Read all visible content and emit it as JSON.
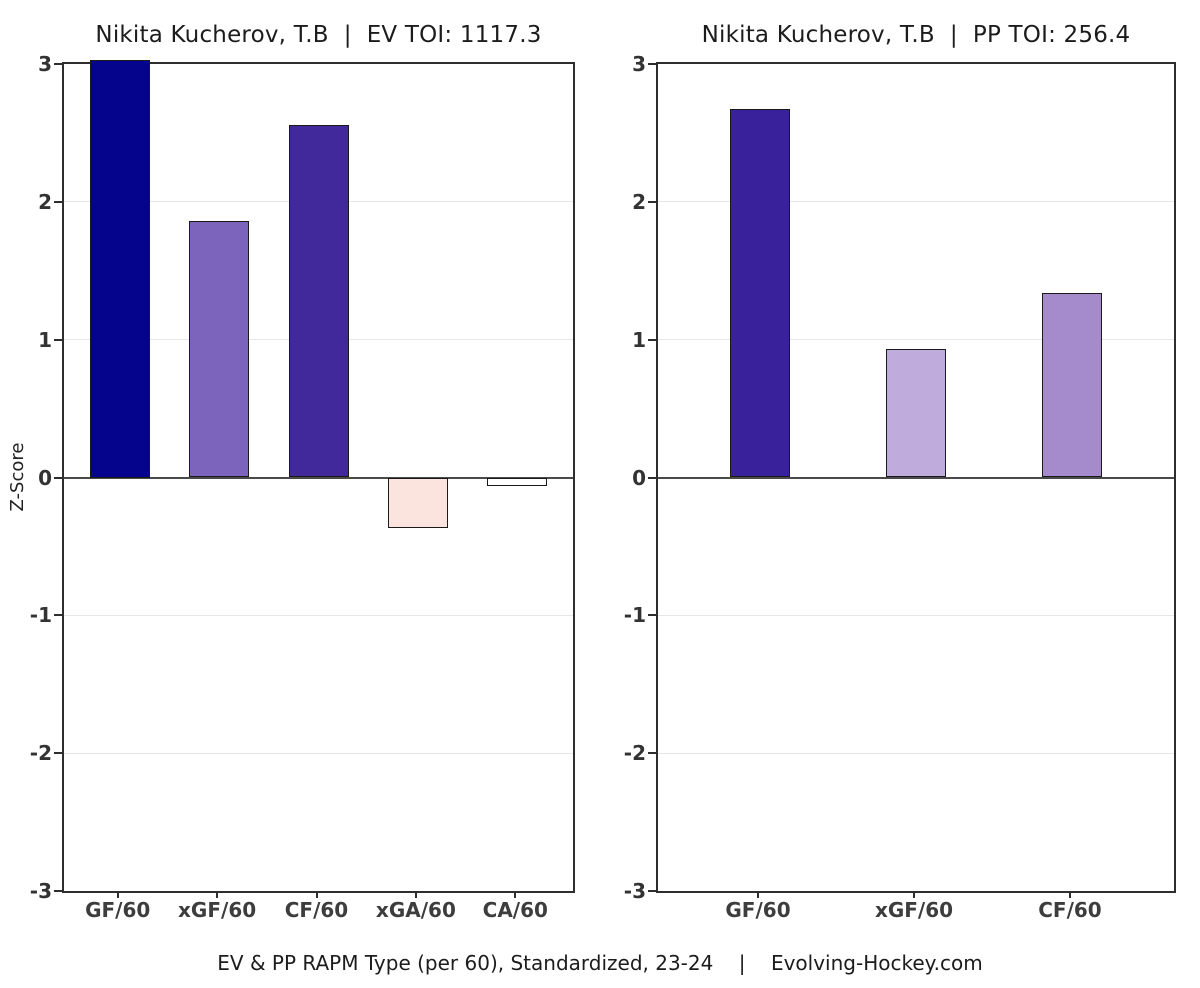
{
  "footer": {
    "text": "EV & PP RAPM Type (per 60), Standardized, 23-24    |    Evolving-Hockey.com"
  },
  "chart_data": [
    {
      "type": "bar",
      "title": "Nikita Kucherov, T.B  |  EV TOI: 1117.3",
      "ylabel": "Z-Score",
      "categories": [
        "GF/60",
        "xGF/60",
        "CF/60",
        "xGA/60",
        "CA/60"
      ],
      "values": [
        3.03,
        1.86,
        2.56,
        -0.37,
        -0.06
      ],
      "bar_colors": [
        "#04048c",
        "#7c64bc",
        "#41289b",
        "#fbe4de",
        "#ffffff"
      ],
      "bar_border": "#1a1a1a",
      "ylim": [
        -3,
        3
      ],
      "yticks": [
        3,
        2,
        1,
        0,
        -1,
        -2,
        -3
      ],
      "grid": "horizontal major gridlines at integers, zero line dark",
      "grid_color": "#e7e7e7",
      "zero_line_color": "#4a4a4a"
    },
    {
      "type": "bar",
      "title": "Nikita Kucherov, T.B  |  PP TOI: 256.4",
      "ylabel": "",
      "categories": [
        "GF/60",
        "xGF/60",
        "CF/60"
      ],
      "values": [
        2.67,
        0.93,
        1.34
      ],
      "bar_colors": [
        "#38219b",
        "#bfacdd",
        "#a58bcc"
      ],
      "bar_border": "#1a1a1a",
      "ylim": [
        -3,
        3
      ],
      "yticks": [
        3,
        2,
        1,
        0,
        -1,
        -2,
        -3
      ],
      "grid": "horizontal major gridlines at integers, zero line dark",
      "grid_color": "#e7e7e7",
      "zero_line_color": "#4a4a4a"
    }
  ]
}
